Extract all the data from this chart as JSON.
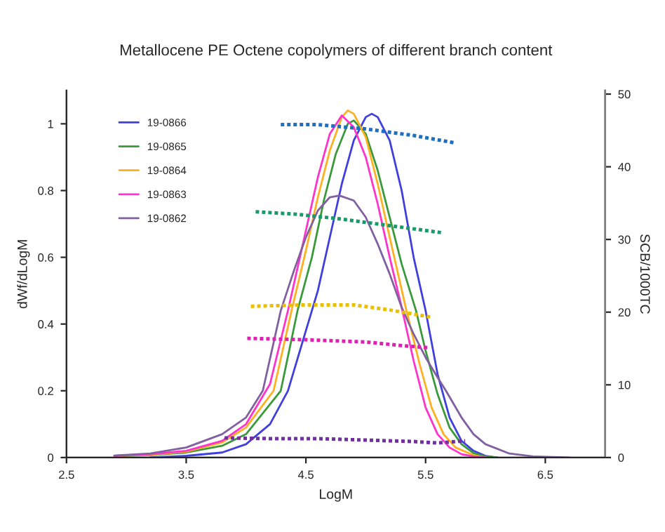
{
  "chart_data": {
    "type": "line",
    "title": "Metallocene PE Octene copolymers of different branch content",
    "xlabel": "LogM",
    "ylabel": "dWf/dLogM",
    "y2label": "SCB/1000TC",
    "xlim": [
      2.5,
      7
    ],
    "xticks": [
      2.5,
      3.5,
      4.5,
      5.5,
      6.5
    ],
    "ylim": [
      0,
      1.1
    ],
    "yticks": [
      0,
      0.2,
      0.4,
      0.6,
      0.8,
      1
    ],
    "y2lim": [
      0,
      50.5
    ],
    "y2ticks": [
      0,
      10,
      20,
      30,
      40,
      50
    ],
    "grid": false,
    "legend": "top left",
    "marker": "none",
    "series": [
      {
        "name": "19-0866",
        "color": "#3f3fe0",
        "line_style": "solid",
        "x": [
          3.2,
          3.5,
          3.8,
          4.0,
          4.2,
          4.35,
          4.5,
          4.6,
          4.7,
          4.8,
          4.9,
          5.0,
          5.05,
          5.1,
          5.2,
          5.3,
          5.4,
          5.5,
          5.6,
          5.7,
          5.8,
          5.9,
          6.0,
          6.1
        ],
        "values": [
          0,
          0.005,
          0.015,
          0.04,
          0.1,
          0.2,
          0.38,
          0.5,
          0.66,
          0.82,
          0.95,
          1.02,
          1.03,
          1.02,
          0.95,
          0.8,
          0.6,
          0.44,
          0.25,
          0.12,
          0.05,
          0.02,
          0.005,
          0
        ]
      },
      {
        "name": "19-0865",
        "color": "#3a9a3a",
        "line_style": "solid",
        "x": [
          2.9,
          3.2,
          3.5,
          3.8,
          4.0,
          4.29,
          4.43,
          4.55,
          4.65,
          4.75,
          4.85,
          4.9,
          5.0,
          5.1,
          5.2,
          5.3,
          5.42,
          5.5,
          5.6,
          5.7,
          5.8,
          5.9,
          6.0,
          6.1
        ],
        "values": [
          0.004,
          0.007,
          0.015,
          0.035,
          0.07,
          0.2,
          0.44,
          0.6,
          0.77,
          0.91,
          1.0,
          1.01,
          0.97,
          0.86,
          0.72,
          0.58,
          0.44,
          0.32,
          0.19,
          0.09,
          0.04,
          0.013,
          0.003,
          0
        ]
      },
      {
        "name": "19-0864",
        "color": "#ffb020",
        "line_style": "solid",
        "x": [
          2.9,
          3.2,
          3.5,
          3.8,
          4.0,
          4.23,
          4.38,
          4.5,
          4.6,
          4.7,
          4.8,
          4.85,
          4.9,
          5.0,
          5.1,
          5.2,
          5.34,
          5.45,
          5.55,
          5.65,
          5.75,
          5.9,
          6.0
        ],
        "values": [
          0.005,
          0.008,
          0.018,
          0.045,
          0.09,
          0.2,
          0.44,
          0.62,
          0.78,
          0.92,
          1.02,
          1.04,
          1.03,
          0.96,
          0.82,
          0.66,
          0.44,
          0.28,
          0.15,
          0.07,
          0.03,
          0.007,
          0
        ]
      },
      {
        "name": "19-0863",
        "color": "#ff33cc",
        "line_style": "solid",
        "x": [
          2.9,
          3.2,
          3.5,
          3.8,
          4.0,
          4.2,
          4.35,
          4.5,
          4.6,
          4.7,
          4.8,
          4.9,
          5.0,
          5.1,
          5.2,
          5.3,
          5.4,
          5.5,
          5.6,
          5.7,
          5.8,
          5.9,
          6.0
        ],
        "values": [
          0.005,
          0.01,
          0.02,
          0.05,
          0.1,
          0.22,
          0.44,
          0.68,
          0.84,
          0.97,
          1.025,
          0.99,
          0.9,
          0.76,
          0.6,
          0.45,
          0.29,
          0.15,
          0.07,
          0.03,
          0.01,
          0.003,
          0
        ]
      },
      {
        "name": "19-0862",
        "color": "#8060a0",
        "line_style": "solid",
        "x": [
          2.9,
          3.2,
          3.5,
          3.8,
          4.0,
          4.14,
          4.29,
          4.4,
          4.5,
          4.6,
          4.7,
          4.78,
          4.9,
          5.0,
          5.1,
          5.2,
          5.3,
          5.4,
          5.5,
          5.6,
          5.67,
          5.8,
          5.9,
          6.0,
          6.2,
          6.4,
          6.7
        ],
        "values": [
          0.006,
          0.012,
          0.03,
          0.07,
          0.12,
          0.2,
          0.44,
          0.56,
          0.66,
          0.74,
          0.78,
          0.785,
          0.77,
          0.72,
          0.64,
          0.55,
          0.45,
          0.37,
          0.3,
          0.24,
          0.2,
          0.12,
          0.07,
          0.04,
          0.012,
          0.003,
          0
        ]
      },
      {
        "color": "#1f6fbf",
        "line_style": "dotted",
        "axis": "y2",
        "x": [
          4.29,
          4.6,
          5.0,
          5.4,
          5.74
        ],
        "values": [
          45.8,
          45.8,
          45.2,
          44.3,
          43.3
        ]
      },
      {
        "color": "#1a9a6a",
        "line_style": "dotted",
        "axis": "y2",
        "x": [
          4.08,
          4.4,
          4.8,
          5.2,
          5.65
        ],
        "values": [
          33.8,
          33.5,
          32.8,
          31.9,
          30.9
        ]
      },
      {
        "color": "#e8c000",
        "line_style": "dotted",
        "axis": "y2",
        "x": [
          4.04,
          4.5,
          4.9,
          5.2,
          5.55
        ],
        "values": [
          20.8,
          21.0,
          21.0,
          20.3,
          19.3
        ]
      },
      {
        "color": "#e020b0",
        "line_style": "dotted",
        "axis": "y2",
        "x": [
          4.01,
          4.5,
          5.0,
          5.3,
          5.53
        ],
        "values": [
          16.4,
          16.2,
          15.9,
          15.4,
          15.1
        ]
      },
      {
        "color": "#7030a0",
        "line_style": "dotted",
        "axis": "y2",
        "x": [
          3.82,
          4.2,
          4.6,
          5.0,
          5.4,
          5.6,
          5.83
        ],
        "values": [
          2.7,
          2.6,
          2.6,
          2.4,
          2.2,
          2.0,
          2.3
        ]
      }
    ]
  }
}
